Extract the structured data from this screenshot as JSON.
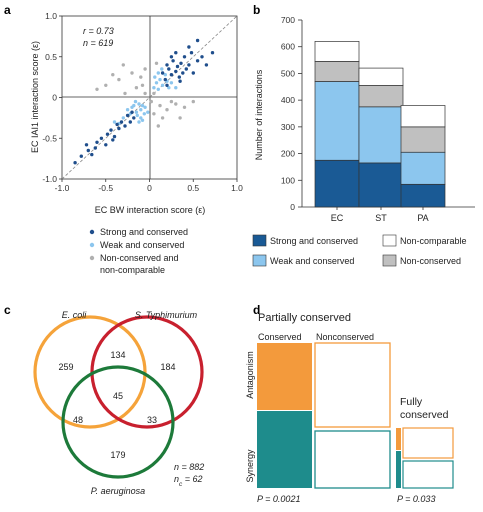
{
  "panels": {
    "a": "a",
    "b": "b",
    "c": "c",
    "d": "d"
  },
  "chart_data": [
    {
      "type": "scatter",
      "panel": "a",
      "xlabel": "EC BW interaction score (ε)",
      "ylabel": "EC IAI1 interaction score (ε)",
      "xlim": [
        -1.0,
        1.0
      ],
      "ylim": [
        -1.0,
        1.0
      ],
      "x_ticks": [
        "-1.0",
        "-0.5",
        "0",
        "0.5",
        "1.0"
      ],
      "y_ticks": [
        "1.0",
        "0.5",
        "0",
        "-0.5",
        "-1.0"
      ],
      "stats": {
        "r_label": "r = 0.73",
        "n_label": "n = 619"
      },
      "legend": [
        {
          "label": "Strong and conserved",
          "color": "#1f4e8c"
        },
        {
          "label": "Weak and conserved",
          "color": "#8cc6ee"
        },
        {
          "label": "Non-conserved and",
          "label2": "non-comparable",
          "color": "#b0b0b0"
        }
      ],
      "series": [
        {
          "name": "Strong and conserved",
          "color": "#1f4e8c",
          "points": [
            [
              -0.85,
              -0.8
            ],
            [
              -0.78,
              -0.72
            ],
            [
              -0.7,
              -0.65
            ],
            [
              -0.66,
              -0.7
            ],
            [
              -0.6,
              -0.55
            ],
            [
              -0.55,
              -0.5
            ],
            [
              -0.5,
              -0.58
            ],
            [
              -0.48,
              -0.45
            ],
            [
              -0.44,
              -0.4
            ],
            [
              -0.4,
              -0.48
            ],
            [
              -0.37,
              -0.33
            ],
            [
              -0.35,
              -0.38
            ],
            [
              -0.32,
              -0.3
            ],
            [
              -0.28,
              -0.35
            ],
            [
              -0.25,
              -0.22
            ],
            [
              -0.22,
              -0.3
            ],
            [
              -0.2,
              -0.18
            ],
            [
              -0.18,
              -0.25
            ],
            [
              -0.62,
              -0.62
            ],
            [
              -0.72,
              -0.58
            ],
            [
              -0.42,
              -0.52
            ],
            [
              0.15,
              0.3
            ],
            [
              0.18,
              0.22
            ],
            [
              0.2,
              0.4
            ],
            [
              0.22,
              0.35
            ],
            [
              0.25,
              0.28
            ],
            [
              0.27,
              0.45
            ],
            [
              0.3,
              0.32
            ],
            [
              0.32,
              0.38
            ],
            [
              0.34,
              0.25
            ],
            [
              0.36,
              0.42
            ],
            [
              0.38,
              0.3
            ],
            [
              0.4,
              0.5
            ],
            [
              0.42,
              0.35
            ],
            [
              0.45,
              0.4
            ],
            [
              0.48,
              0.55
            ],
            [
              0.5,
              0.3
            ],
            [
              0.55,
              0.45
            ],
            [
              0.6,
              0.5
            ],
            [
              0.65,
              0.4
            ],
            [
              0.72,
              0.55
            ],
            [
              0.3,
              0.55
            ],
            [
              0.25,
              0.5
            ],
            [
              0.2,
              0.15
            ],
            [
              0.35,
              0.2
            ],
            [
              0.45,
              0.62
            ],
            [
              0.55,
              0.7
            ]
          ]
        },
        {
          "name": "Weak and conserved",
          "color": "#8cc6ee",
          "points": [
            [
              -0.18,
              -0.1
            ],
            [
              -0.15,
              -0.18
            ],
            [
              -0.12,
              -0.08
            ],
            [
              -0.1,
              -0.15
            ],
            [
              -0.08,
              -0.1
            ],
            [
              -0.14,
              -0.22
            ],
            [
              -0.2,
              -0.12
            ],
            [
              -0.06,
              -0.2
            ],
            [
              -0.16,
              -0.05
            ],
            [
              -0.22,
              -0.2
            ],
            [
              -0.1,
              -0.25
            ],
            [
              -0.05,
              -0.12
            ],
            [
              -0.25,
              -0.15
            ],
            [
              -0.3,
              -0.25
            ],
            [
              -0.12,
              -0.3
            ],
            [
              0.05,
              0.12
            ],
            [
              0.08,
              0.18
            ],
            [
              0.1,
              0.1
            ],
            [
              0.12,
              0.22
            ],
            [
              0.15,
              0.15
            ],
            [
              0.18,
              0.28
            ],
            [
              0.1,
              0.3
            ],
            [
              0.2,
              0.2
            ],
            [
              0.22,
              0.12
            ],
            [
              0.06,
              0.25
            ],
            [
              0.14,
              0.35
            ],
            [
              0.25,
              0.18
            ],
            [
              0.3,
              0.12
            ],
            [
              -0.35,
              -0.32
            ],
            [
              -0.4,
              -0.3
            ],
            [
              -0.02,
              -0.18
            ],
            [
              -0.08,
              -0.28
            ]
          ]
        },
        {
          "name": "Non-conserved and non-comparable",
          "color": "#b0b0b0",
          "points": [
            [
              -0.5,
              0.15
            ],
            [
              -0.35,
              0.22
            ],
            [
              -0.2,
              0.3
            ],
            [
              -0.1,
              0.25
            ],
            [
              -0.28,
              0.05
            ],
            [
              -0.15,
              0.12
            ],
            [
              -0.05,
              0.35
            ],
            [
              -0.42,
              0.28
            ],
            [
              -0.6,
              0.1
            ],
            [
              0.05,
              -0.2
            ],
            [
              0.12,
              -0.1
            ],
            [
              0.2,
              -0.15
            ],
            [
              0.3,
              -0.08
            ],
            [
              0.15,
              -0.25
            ],
            [
              0.25,
              -0.05
            ],
            [
              0.4,
              -0.12
            ],
            [
              0.1,
              -0.35
            ],
            [
              0.35,
              -0.25
            ],
            [
              -0.05,
              0.05
            ],
            [
              0.02,
              -0.05
            ],
            [
              0.05,
              0.05
            ],
            [
              -0.08,
              0.15
            ],
            [
              0.5,
              -0.05
            ],
            [
              -0.3,
              0.4
            ],
            [
              0.08,
              0.42
            ]
          ]
        }
      ]
    },
    {
      "type": "bar",
      "panel": "b",
      "ylabel": "Number of interactions",
      "ylim": [
        0,
        700
      ],
      "y_ticks": [
        "0",
        "100",
        "200",
        "300",
        "400",
        "500",
        "600",
        "700"
      ],
      "categories": [
        "EC",
        "ST",
        "PA"
      ],
      "stacked": true,
      "series": [
        {
          "name": "Strong and conserved",
          "color": "#1a5a95",
          "values": [
            175,
            165,
            85
          ]
        },
        {
          "name": "Weak and conserved",
          "color": "#8cc6ee",
          "values": [
            295,
            210,
            120
          ]
        },
        {
          "name": "Non-conserved",
          "color": "#c0c0c0",
          "values": [
            75,
            80,
            95
          ]
        },
        {
          "name": "Non-comparable",
          "color": "#ffffff",
          "values": [
            75,
            65,
            80
          ]
        }
      ],
      "legend": [
        {
          "label": "Strong and conserved",
          "color": "#1a5a95"
        },
        {
          "label": "Non-comparable",
          "color": "#ffffff"
        },
        {
          "label": "Weak and conserved",
          "color": "#8cc6ee"
        },
        {
          "label": "Non-conserved",
          "color": "#c0c0c0"
        }
      ]
    },
    {
      "type": "venn",
      "panel": "c",
      "sets": [
        {
          "label": "E. coli",
          "color": "#f5a33a"
        },
        {
          "label": "S. Typhimurium",
          "color": "#c8202e"
        },
        {
          "label": "P. aeruginosa",
          "color": "#1d7a3a"
        }
      ],
      "regions": {
        "ec_only": "259",
        "st_only": "184",
        "pa_only": "179",
        "ec_st": "134",
        "ec_pa": "48",
        "st_pa": "33",
        "all": "45"
      },
      "stats": {
        "n_label": "n = 882",
        "nc_label": "n",
        "nc_sub": "c",
        "nc_val": " = 62"
      }
    },
    {
      "type": "mosaic",
      "panel": "d",
      "title_partial": "Partially conserved",
      "title_fully_1": "Fully",
      "title_fully_2": "conserved",
      "col_conserved": "Conserved",
      "col_nonconserved": "Nonconserved",
      "row_antagonism": "Antagonism",
      "row_synergy": "Synergy",
      "p_partial": "P = 0.0021",
      "p_fully": "P = 0.033",
      "colors": {
        "antagonism": "#f39a3c",
        "synergy": "#1e8c8c"
      }
    }
  ]
}
